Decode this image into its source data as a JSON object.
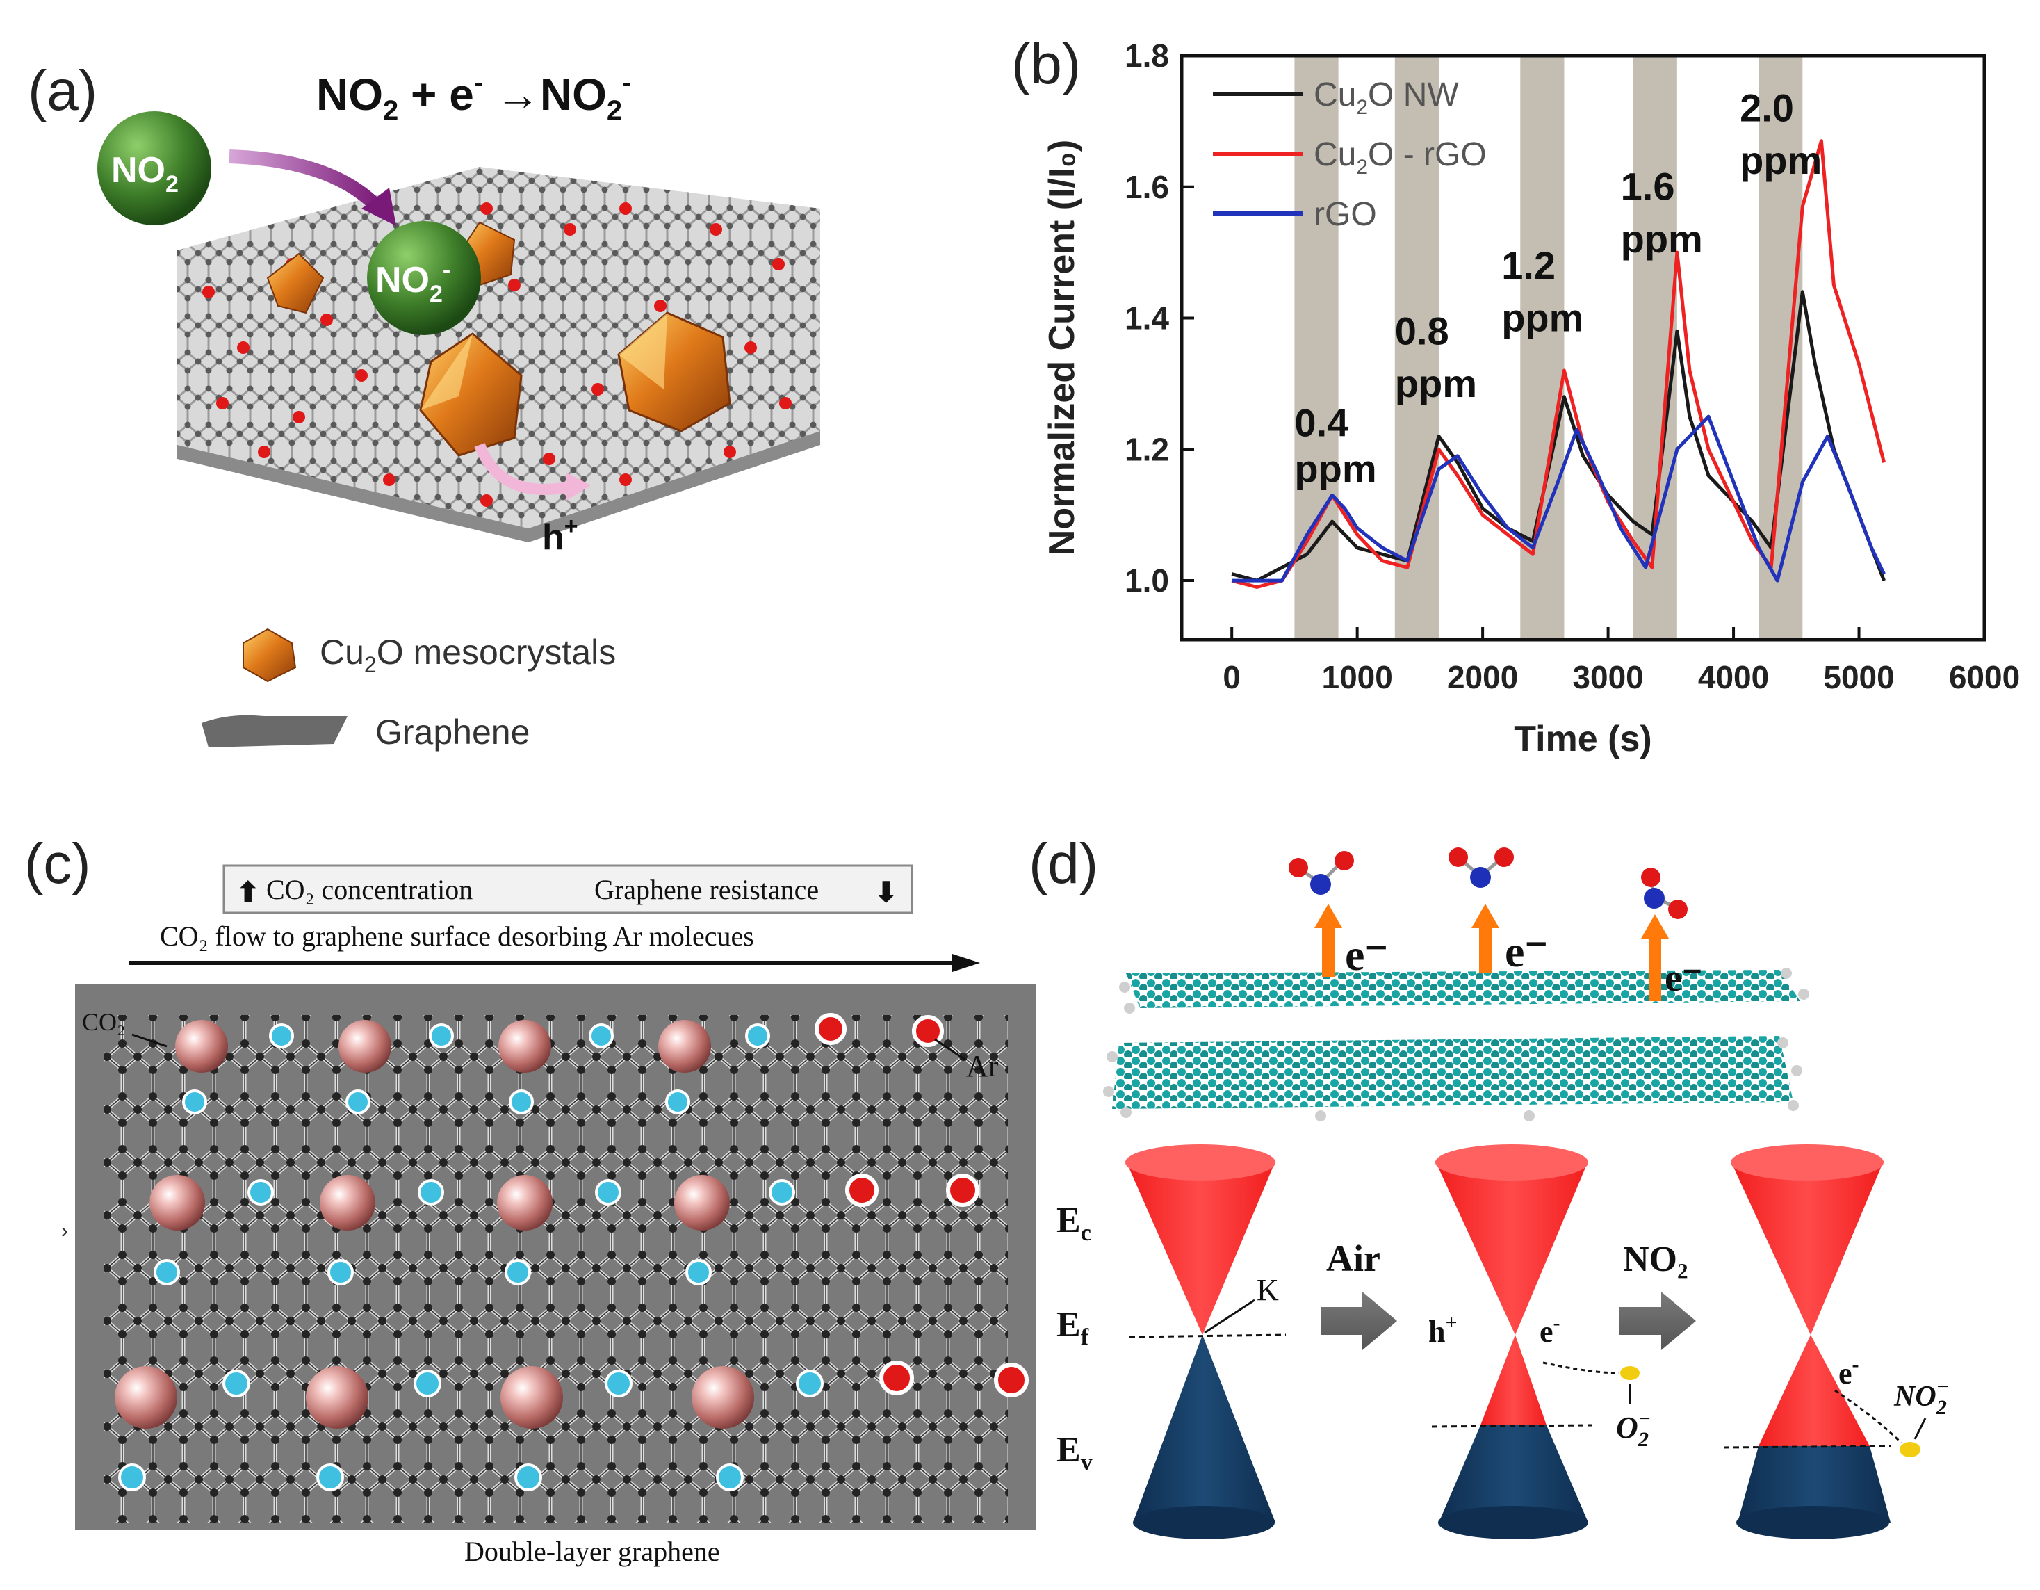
{
  "panel_a": {
    "label": "(a)",
    "equation": {
      "base1": "NO",
      "sub1": "2",
      "mid": " + e",
      "sup1": "-",
      "arrow": " →",
      "base2": "NO",
      "sub2": "2",
      "sup2": "-"
    },
    "molecule_no2": {
      "base": "NO",
      "sub": "2"
    },
    "molecule_no2_ion": {
      "base": "NO",
      "sub": "2",
      "sup": "-"
    },
    "hole": {
      "base": "h",
      "sup": "+"
    },
    "legend": [
      {
        "base": "Cu",
        "sub": "2",
        "rest": "O mesocrystals"
      },
      {
        "text": "Graphene"
      }
    ]
  },
  "panel_b": {
    "label": "(b)"
  },
  "panel_c": {
    "label": "(c)",
    "box_left": "CO₂ concentration",
    "box_right": "Graphene resistance",
    "flow_text": "CO₂ flow to graphene surface desorbing Ar molecues",
    "co2_label": "CO₂",
    "ar_label": "Ar",
    "caption": "Double-layer graphene"
  },
  "panel_d": {
    "label": "(d)",
    "electron_labels": [
      "e⁻",
      "e⁻",
      "e⁻"
    ],
    "ec": {
      "base": "E",
      "sub": "c"
    },
    "ef": {
      "base": "E",
      "sub": "f"
    },
    "ev": {
      "base": "E",
      "sub": "v"
    },
    "k_label": "K",
    "air_label": "Air",
    "no2_label": "NO₂",
    "hole_label": {
      "base": "h",
      "sup": "+"
    },
    "e_label_2": {
      "base": "e",
      "sup": "-"
    },
    "e_label_3": {
      "base": "e",
      "sup": "-"
    },
    "o2_minus": {
      "base": "O",
      "sup": "−",
      "sub": "2"
    },
    "no2_minus": {
      "base": "NO",
      "sup": "−",
      "sub": "2"
    }
  },
  "chart_data": {
    "type": "line",
    "xlabel": "Time (s)",
    "ylabel": "Normalized Current (I/I₀)",
    "xlim": [
      -400,
      6000
    ],
    "ylim": [
      0.91,
      1.8
    ],
    "xticks": [
      0,
      1000,
      2000,
      3000,
      4000,
      5000,
      6000
    ],
    "yticks": [
      1.0,
      1.2,
      1.4,
      1.6,
      1.8
    ],
    "xtick_labels": [
      "0",
      "1000",
      "2000",
      "3000",
      "4000",
      "5000",
      "6000"
    ],
    "ytick_labels": [
      "1.0",
      "1.2",
      "1.4",
      "1.6",
      "1.8"
    ],
    "shaded_intervals": [
      [
        500,
        850
      ],
      [
        1300,
        1650
      ],
      [
        2300,
        2650
      ],
      [
        3200,
        3550
      ],
      [
        4200,
        4550
      ]
    ],
    "annotations": [
      {
        "value": "0.4",
        "unit": "ppm",
        "x": 500,
        "y1": 1.22,
        "y2": 1.15
      },
      {
        "value": "0.8",
        "unit": "ppm",
        "x": 1300,
        "y1": 1.36,
        "y2": 1.28
      },
      {
        "value": "1.2",
        "unit": "ppm",
        "x": 2150,
        "y1": 1.46,
        "y2": 1.38
      },
      {
        "value": "1.6",
        "unit": "ppm",
        "x": 3100,
        "y1": 1.58,
        "y2": 1.5
      },
      {
        "value": "2.0",
        "unit": "ppm",
        "x": 4050,
        "y1": 1.7,
        "y2": 1.62
      }
    ],
    "legend": [
      {
        "base": "Cu",
        "sub": "2",
        "rest": "O NW",
        "color": "#1a1a1a"
      },
      {
        "base": "Cu",
        "sub": "2",
        "rest": "O - rGO",
        "color": "#ee2222"
      },
      {
        "base": "rGO",
        "sub": "",
        "rest": "",
        "color": "#2233bb"
      }
    ],
    "series": [
      {
        "name": "Cu2O NW",
        "color": "#1a1a1a",
        "points": [
          [
            0,
            1.01
          ],
          [
            200,
            1.0
          ],
          [
            400,
            1.02
          ],
          [
            600,
            1.04
          ],
          [
            800,
            1.09
          ],
          [
            900,
            1.07
          ],
          [
            1000,
            1.05
          ],
          [
            1200,
            1.04
          ],
          [
            1400,
            1.03
          ],
          [
            1650,
            1.22
          ],
          [
            1800,
            1.18
          ],
          [
            2000,
            1.11
          ],
          [
            2200,
            1.08
          ],
          [
            2400,
            1.06
          ],
          [
            2650,
            1.28
          ],
          [
            2800,
            1.19
          ],
          [
            3000,
            1.13
          ],
          [
            3200,
            1.09
          ],
          [
            3350,
            1.07
          ],
          [
            3550,
            1.38
          ],
          [
            3650,
            1.25
          ],
          [
            3800,
            1.16
          ],
          [
            4000,
            1.12
          ],
          [
            4150,
            1.09
          ],
          [
            4300,
            1.05
          ],
          [
            4550,
            1.44
          ],
          [
            4650,
            1.33
          ],
          [
            4800,
            1.2
          ],
          [
            5000,
            1.1
          ],
          [
            5200,
            1.0
          ]
        ]
      },
      {
        "name": "Cu2O - rGO",
        "color": "#ee2222",
        "points": [
          [
            0,
            1.0
          ],
          [
            200,
            0.99
          ],
          [
            400,
            1.0
          ],
          [
            600,
            1.06
          ],
          [
            800,
            1.13
          ],
          [
            900,
            1.1
          ],
          [
            1000,
            1.07
          ],
          [
            1200,
            1.03
          ],
          [
            1400,
            1.02
          ],
          [
            1650,
            1.2
          ],
          [
            1800,
            1.16
          ],
          [
            2000,
            1.1
          ],
          [
            2200,
            1.07
          ],
          [
            2400,
            1.04
          ],
          [
            2650,
            1.32
          ],
          [
            2800,
            1.21
          ],
          [
            3000,
            1.12
          ],
          [
            3200,
            1.06
          ],
          [
            3350,
            1.02
          ],
          [
            3550,
            1.5
          ],
          [
            3650,
            1.32
          ],
          [
            3800,
            1.2
          ],
          [
            4000,
            1.12
          ],
          [
            4150,
            1.06
          ],
          [
            4300,
            1.02
          ],
          [
            4550,
            1.57
          ],
          [
            4700,
            1.67
          ],
          [
            4800,
            1.45
          ],
          [
            5000,
            1.33
          ],
          [
            5200,
            1.18
          ]
        ]
      },
      {
        "name": "rGO",
        "color": "#2233bb",
        "points": [
          [
            0,
            1.0
          ],
          [
            200,
            1.0
          ],
          [
            400,
            1.0
          ],
          [
            600,
            1.07
          ],
          [
            800,
            1.13
          ],
          [
            900,
            1.11
          ],
          [
            1000,
            1.08
          ],
          [
            1200,
            1.05
          ],
          [
            1400,
            1.03
          ],
          [
            1650,
            1.17
          ],
          [
            1800,
            1.19
          ],
          [
            2000,
            1.13
          ],
          [
            2200,
            1.08
          ],
          [
            2400,
            1.05
          ],
          [
            2600,
            1.15
          ],
          [
            2750,
            1.23
          ],
          [
            2900,
            1.17
          ],
          [
            3100,
            1.08
          ],
          [
            3300,
            1.02
          ],
          [
            3550,
            1.2
          ],
          [
            3800,
            1.25
          ],
          [
            4000,
            1.15
          ],
          [
            4200,
            1.05
          ],
          [
            4350,
            1.0
          ],
          [
            4550,
            1.15
          ],
          [
            4750,
            1.22
          ],
          [
            4900,
            1.15
          ],
          [
            5100,
            1.05
          ],
          [
            5200,
            1.01
          ]
        ]
      }
    ]
  }
}
